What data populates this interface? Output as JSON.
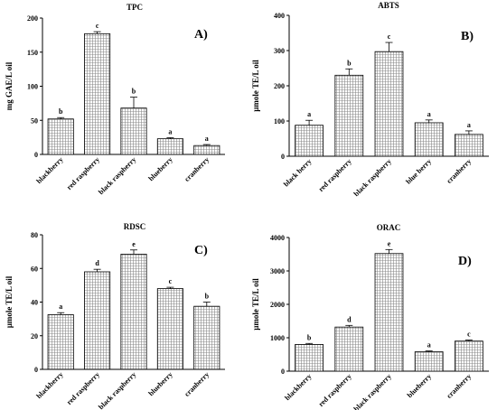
{
  "chart_data": [
    {
      "type": "bar",
      "title": "TPC",
      "panel": "A)",
      "ylabel": "mg GAE/L oil",
      "ylim": [
        0,
        200
      ],
      "yticks": [
        0,
        50,
        100,
        150,
        200
      ],
      "categories": [
        "blackberry",
        "red raspberry",
        "black raspberry",
        "blueberry",
        "cranberry"
      ],
      "values": [
        52,
        177,
        68,
        23,
        13
      ],
      "errors": [
        2,
        3,
        16,
        1.5,
        1.5
      ],
      "significance": [
        "b",
        "c",
        "b",
        "a",
        "a"
      ]
    },
    {
      "type": "bar",
      "title": "ABTS",
      "panel": "B)",
      "ylabel": "µmole TE/L oil",
      "ylim": [
        0,
        400
      ],
      "yticks": [
        0,
        100,
        200,
        300,
        400
      ],
      "categories": [
        "black berry",
        "red raspberry",
        "black raspberry",
        "blue berry",
        "cranberry"
      ],
      "values": [
        88,
        230,
        297,
        95,
        62
      ],
      "errors": [
        14,
        18,
        26,
        8,
        10
      ],
      "significance": [
        "a",
        "b",
        "c",
        "a",
        "a"
      ]
    },
    {
      "type": "bar",
      "title": "RDSC",
      "panel": "C)",
      "ylabel": "µmole TE/L oil",
      "ylim": [
        0,
        80
      ],
      "yticks": [
        0,
        20,
        40,
        60,
        80
      ],
      "categories": [
        "blackberry",
        "red raspberry",
        "black raspberry",
        "blueberry",
        "cranberry"
      ],
      "values": [
        32.5,
        58,
        68.5,
        48,
        37.5
      ],
      "errors": [
        1.2,
        1.5,
        2.5,
        0.8,
        2.5
      ],
      "significance": [
        "a",
        "d",
        "e",
        "c",
        "b"
      ]
    },
    {
      "type": "bar",
      "title": "ORAC",
      "panel": "D)",
      "ylabel": "µmole TE/L oil",
      "ylim": [
        0,
        4000
      ],
      "yticks": [
        0,
        1000,
        2000,
        3000,
        4000
      ],
      "categories": [
        "blackberry",
        "red raspberry",
        "black raspberry",
        "blueberry",
        "cranberry"
      ],
      "values": [
        800,
        1320,
        3520,
        580,
        900
      ],
      "errors": [
        30,
        50,
        120,
        25,
        30
      ],
      "significance": [
        "b",
        "d",
        "e",
        "a",
        "c"
      ]
    }
  ]
}
